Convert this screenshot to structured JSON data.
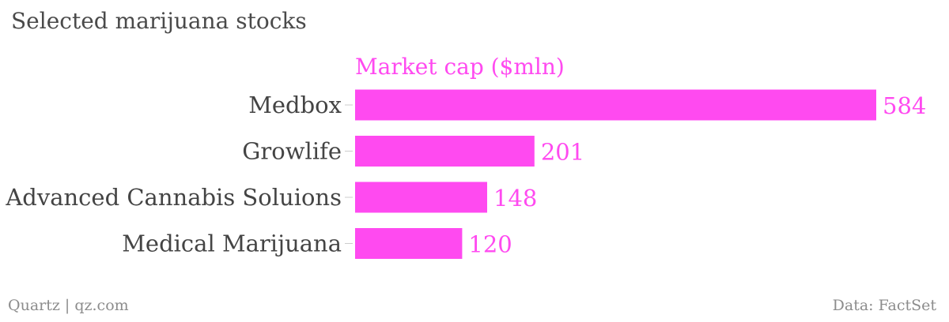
{
  "title": "Selected marijuana stocks",
  "footer": {
    "source_left": "Quartz | qz.com",
    "source_right": "Data: FactSet"
  },
  "colors": {
    "bar": "#ff4af0",
    "label_text": "#444444",
    "tick": "#cccccc"
  },
  "chart_data": {
    "type": "bar",
    "orientation": "horizontal",
    "categories": [
      "Medbox",
      "Growlife",
      "Advanced Cannabis Soluions",
      "Medical Marijuana"
    ],
    "series": [
      {
        "name": "Market cap ($mln)",
        "values": [
          584,
          201,
          148,
          120
        ]
      }
    ],
    "xlim": [
      0,
      584
    ],
    "grid": false,
    "data_labels": true
  }
}
